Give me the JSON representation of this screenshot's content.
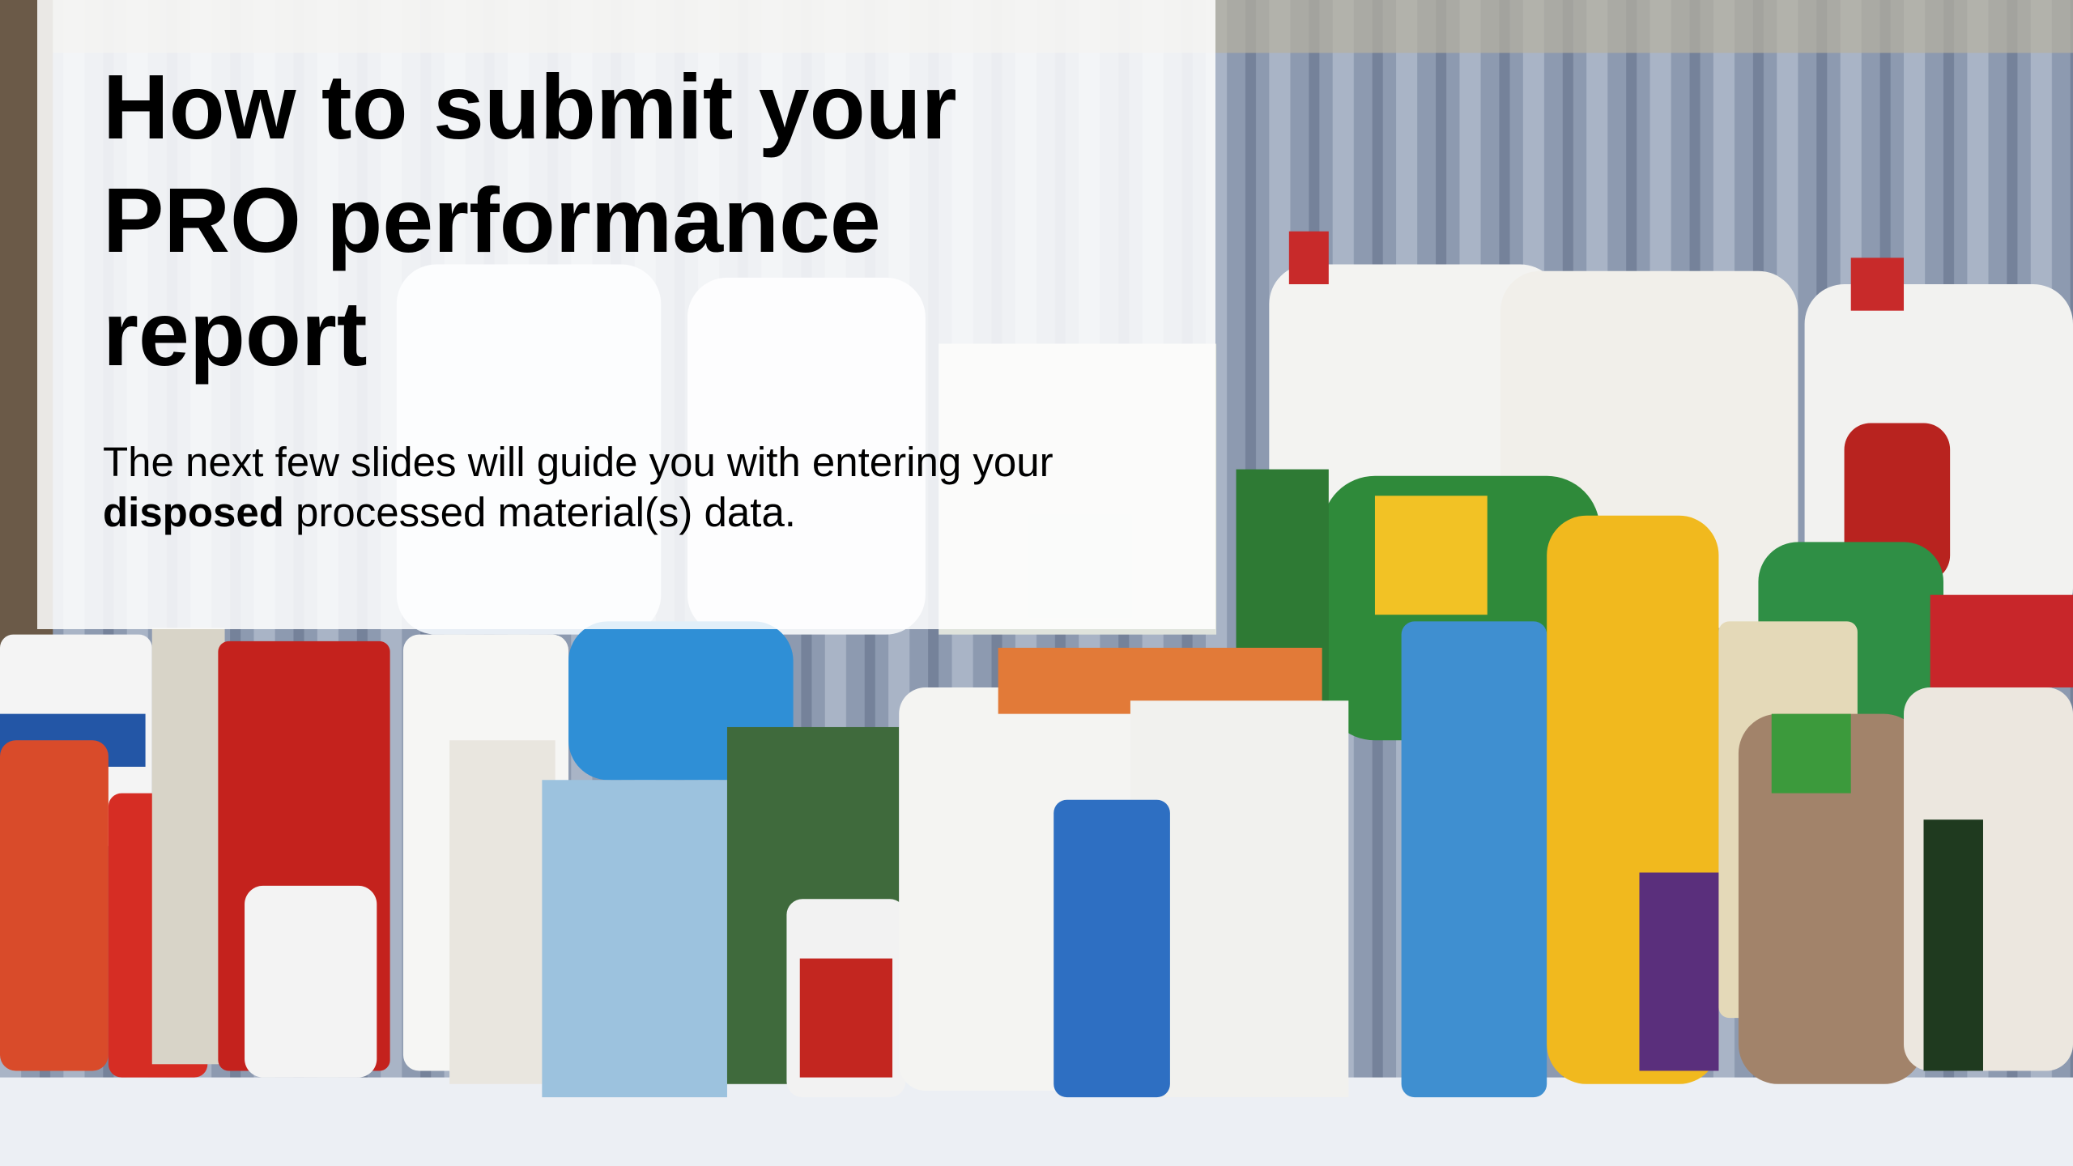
{
  "slide": {
    "title": "How to submit your PRO performance report",
    "subtitle": {
      "before": "The next few slides will guide you with entering your ",
      "emphasis": "disposed",
      "after": " processed material(s) data."
    }
  }
}
